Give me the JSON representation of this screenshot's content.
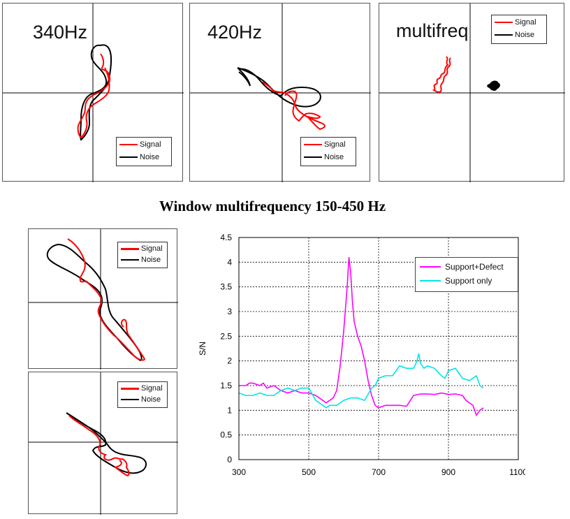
{
  "colors": {
    "signal": "#ff0000",
    "noise": "#000000",
    "support_defect": "#ff00ff",
    "support_only": "#00e5e5"
  },
  "polar_plots": [
    {
      "label": "340Hz",
      "legend": [
        "Signal",
        "Noise"
      ]
    },
    {
      "label": "420Hz",
      "legend": [
        "Signal",
        "Noise"
      ]
    },
    {
      "label": "multifreq",
      "legend": [
        "Signal",
        "Noise"
      ]
    },
    {
      "label": "",
      "legend": [
        "Signal",
        "Noise"
      ]
    },
    {
      "label": "",
      "legend": [
        "Signal",
        "Noise"
      ]
    }
  ],
  "section_title": "Window multifrequency 150-450 Hz",
  "chart_data": {
    "type": "line",
    "title": "",
    "xlabel": "",
    "ylabel": "S/N",
    "xlim": [
      300,
      1100
    ],
    "ylim": [
      0,
      4.5
    ],
    "xticks": [
      300,
      500,
      700,
      900,
      1100
    ],
    "yticks": [
      0,
      0.5,
      1,
      1.5,
      2,
      2.5,
      3,
      3.5,
      4,
      4.5
    ],
    "grid": true,
    "legend_position": "top-right",
    "series": [
      {
        "name": "Support+Defect",
        "color": "#ff00ff",
        "x": [
          300,
          320,
          330,
          340,
          360,
          370,
          380,
          400,
          420,
          440,
          460,
          480,
          500,
          520,
          540,
          550,
          560,
          570,
          580,
          590,
          600,
          610,
          615,
          620,
          625,
          630,
          640,
          650,
          660,
          670,
          680,
          690,
          700,
          720,
          740,
          760,
          780,
          800,
          820,
          840,
          860,
          880,
          900,
          920,
          940,
          950,
          960,
          970,
          980,
          990,
          1000
        ],
        "y": [
          1.5,
          1.5,
          1.55,
          1.55,
          1.5,
          1.55,
          1.45,
          1.5,
          1.4,
          1.35,
          1.4,
          1.35,
          1.35,
          1.3,
          1.2,
          1.15,
          1.2,
          1.25,
          1.4,
          1.9,
          2.6,
          3.5,
          4.1,
          3.8,
          3.2,
          2.8,
          2.5,
          2.3,
          2.0,
          1.6,
          1.3,
          1.1,
          1.05,
          1.1,
          1.1,
          1.1,
          1.08,
          1.3,
          1.33,
          1.33,
          1.32,
          1.35,
          1.32,
          1.33,
          1.3,
          1.2,
          1.15,
          1.1,
          0.9,
          1.0,
          1.05
        ]
      },
      {
        "name": "Support only",
        "color": "#00e5e5",
        "x": [
          300,
          320,
          340,
          360,
          380,
          400,
          420,
          440,
          460,
          480,
          500,
          520,
          540,
          550,
          560,
          580,
          600,
          620,
          640,
          660,
          680,
          690,
          700,
          720,
          740,
          760,
          780,
          800,
          810,
          815,
          820,
          830,
          840,
          860,
          880,
          890,
          900,
          920,
          940,
          960,
          970,
          980,
          990,
          1000
        ],
        "y": [
          1.35,
          1.3,
          1.3,
          1.35,
          1.3,
          1.3,
          1.4,
          1.45,
          1.4,
          1.45,
          1.45,
          1.2,
          1.1,
          1.05,
          1.1,
          1.1,
          1.2,
          1.25,
          1.25,
          1.2,
          1.45,
          1.5,
          1.65,
          1.7,
          1.7,
          1.9,
          1.85,
          1.85,
          2.0,
          2.15,
          1.95,
          1.85,
          1.9,
          1.85,
          1.7,
          1.65,
          1.8,
          1.85,
          1.65,
          1.6,
          1.65,
          1.7,
          1.5,
          1.45
        ]
      }
    ]
  }
}
